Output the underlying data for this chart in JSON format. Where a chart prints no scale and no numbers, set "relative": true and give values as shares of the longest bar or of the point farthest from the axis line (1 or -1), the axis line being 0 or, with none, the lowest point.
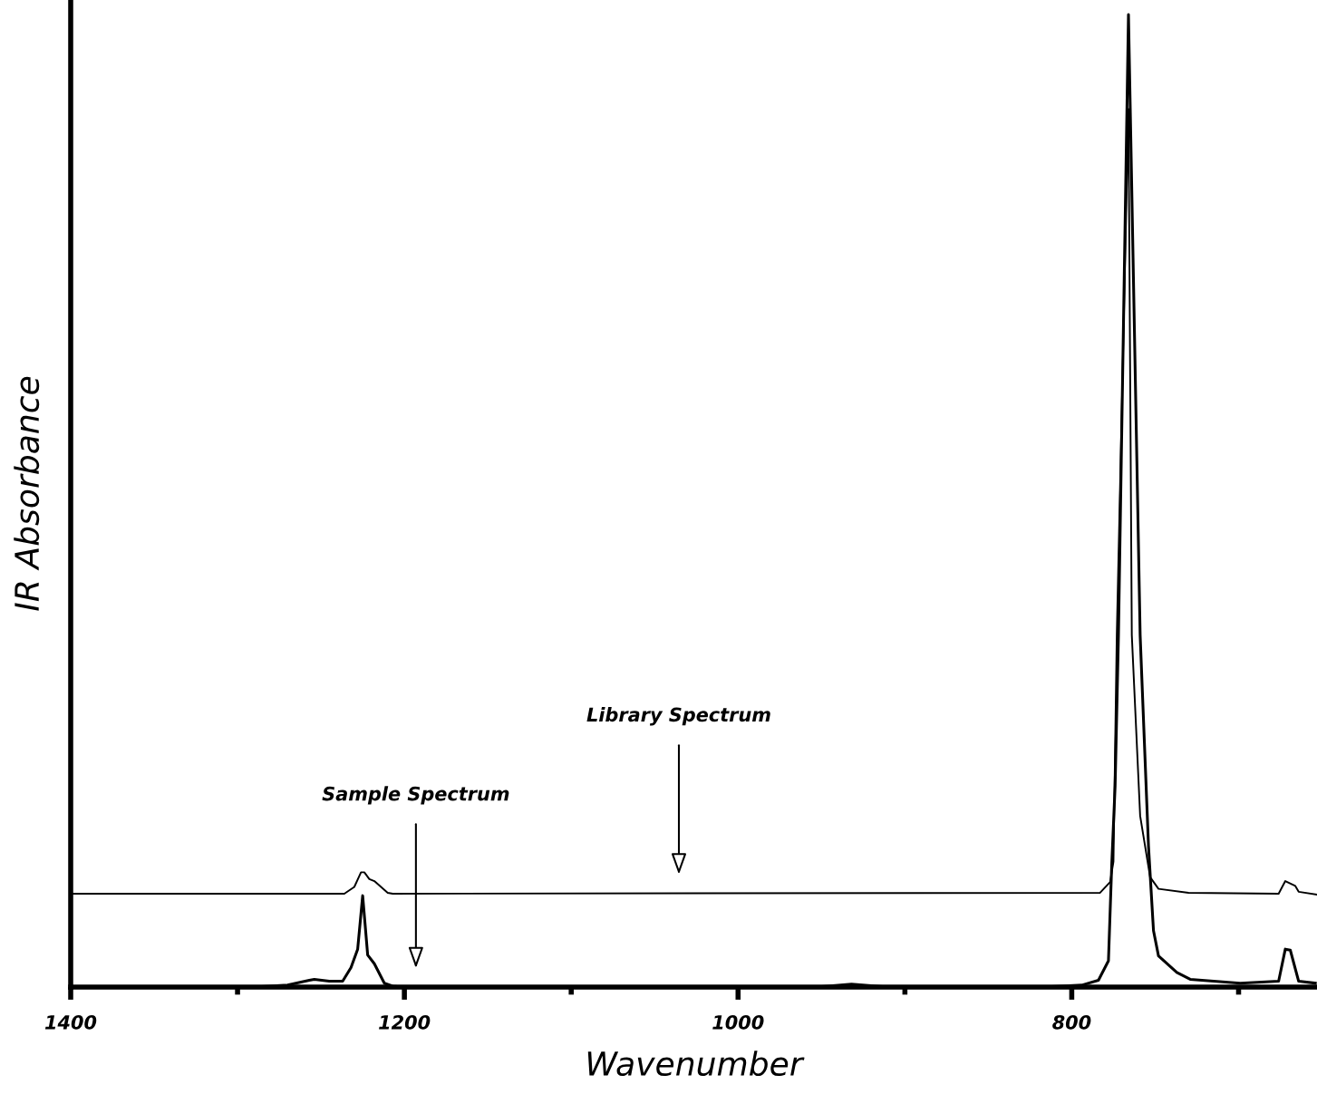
{
  "chart_data": {
    "type": "line",
    "relative": true,
    "xlabel": "Wavenumber",
    "ylabel": "IR Absorbance",
    "xlim": [
      1400,
      653
    ],
    "xticks": [
      1400,
      {
        "value": 1300,
        "label": null
      },
      1200,
      {
        "value": 1100,
        "label": null
      },
      1000,
      {
        "value": 900,
        "label": null
      },
      800,
      {
        "value": 700,
        "label": null
      }
    ],
    "tick_labels": "x",
    "grid": false,
    "legend": false,
    "annotations": [
      "Library Spectrum",
      "Sample Spectrum"
    ],
    "series": [
      {
        "color": "#000000",
        "x": [
          1400,
          1236,
          1230,
          1226,
          1224,
          1221,
          1218,
          1210,
          1207,
          783,
          777,
          775,
          773,
          766,
          764,
          759,
          753,
          748,
          730,
          676,
          672,
          666,
          664,
          653
        ],
        "values": [
          0.096,
          0.096,
          0.103,
          0.118,
          0.118,
          0.111,
          0.109,
          0.097,
          0.096,
          0.097,
          0.108,
          0.129,
          0.362,
          0.903,
          0.362,
          0.176,
          0.113,
          0.101,
          0.097,
          0.096,
          0.109,
          0.104,
          0.098,
          0.095
        ]
      },
      {
        "color": "#000000",
        "x": [
          1400,
          1290,
          1270,
          1257,
          1254,
          1245,
          1237,
          1232,
          1228,
          1225,
          1222,
          1218,
          1212,
          1207,
          1201,
          953,
          932,
          910,
          817,
          794,
          784,
          778,
          776,
          774,
          772,
          766,
          759,
          754,
          751,
          748,
          737,
          729,
          699,
          676,
          672,
          669,
          664,
          654
        ],
        "values": [
          0,
          0,
          0.002,
          0.007,
          0.008,
          0.006,
          0.006,
          0.02,
          0.039,
          0.094,
          0.033,
          0.024,
          0.004,
          0.001,
          0,
          0,
          0.003,
          0,
          0,
          0.002,
          0.007,
          0.027,
          0.127,
          0.207,
          0.362,
          1.0,
          0.362,
          0.145,
          0.058,
          0.032,
          0.015,
          0.008,
          0.004,
          0.006,
          0.039,
          0.038,
          0.006,
          0.004
        ]
      }
    ]
  }
}
